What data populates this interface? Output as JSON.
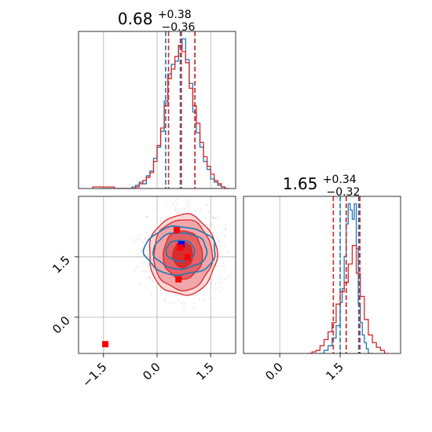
{
  "chart_data": [
    {
      "type": "histogram",
      "panel": "top-left",
      "title": {
        "value": "0.68",
        "plus": "+0.38",
        "minus": "−0.36"
      },
      "x_range": [
        -2.2,
        2.2
      ],
      "gridlines_x": [
        -1.5,
        0.0,
        1.5
      ],
      "series": [
        {
          "color": "#1f77b4",
          "bins": [
            [
              -1.6,
              0.0
            ],
            [
              -0.7,
              0.01
            ],
            [
              -0.6,
              0.02
            ],
            [
              -0.5,
              0.04
            ],
            [
              -0.4,
              0.03
            ],
            [
              -0.3,
              0.08
            ],
            [
              -0.2,
              0.11
            ],
            [
              -0.1,
              0.19
            ],
            [
              0.0,
              0.26
            ],
            [
              0.1,
              0.36
            ],
            [
              0.2,
              0.55
            ],
            [
              0.3,
              0.72
            ],
            [
              0.4,
              0.78
            ],
            [
              0.5,
              0.8
            ],
            [
              0.6,
              0.89
            ],
            [
              0.7,
              0.94
            ],
            [
              0.8,
              0.81
            ],
            [
              0.9,
              0.66
            ],
            [
              1.0,
              0.48
            ],
            [
              1.1,
              0.35
            ],
            [
              1.2,
              0.26
            ],
            [
              1.3,
              0.17
            ],
            [
              1.4,
              0.12
            ],
            [
              1.5,
              0.06
            ],
            [
              1.6,
              0.04
            ],
            [
              1.7,
              0.02
            ],
            [
              1.8,
              0.01
            ],
            [
              1.9,
              0.0
            ]
          ],
          "median": 0.65,
          "q_low": 0.24,
          "q_high": 1.06
        },
        {
          "color": "#d62728",
          "bins": [
            [
              -1.8,
              0.01
            ],
            [
              -1.2,
              0.0
            ],
            [
              -0.6,
              0.01
            ],
            [
              -0.5,
              0.03
            ],
            [
              -0.4,
              0.05
            ],
            [
              -0.3,
              0.07
            ],
            [
              -0.2,
              0.1
            ],
            [
              -0.1,
              0.17
            ],
            [
              0.0,
              0.27
            ],
            [
              0.1,
              0.38
            ],
            [
              0.2,
              0.52
            ],
            [
              0.3,
              0.69
            ],
            [
              0.4,
              0.75
            ],
            [
              0.5,
              0.83
            ],
            [
              0.6,
              0.9
            ],
            [
              0.7,
              0.86
            ],
            [
              0.8,
              0.79
            ],
            [
              0.9,
              0.63
            ],
            [
              1.0,
              0.52
            ],
            [
              1.1,
              0.41
            ],
            [
              1.2,
              0.29
            ],
            [
              1.3,
              0.2
            ],
            [
              1.4,
              0.14
            ],
            [
              1.5,
              0.09
            ],
            [
              1.6,
              0.05
            ],
            [
              1.7,
              0.03
            ],
            [
              1.8,
              0.01
            ],
            [
              1.9,
              0.0
            ]
          ],
          "median": 0.68,
          "q_low": 0.32,
          "q_high": 1.06
        }
      ]
    },
    {
      "type": "contour",
      "panel": "bottom-left",
      "x_range": [
        -2.2,
        2.2
      ],
      "y_range": [
        -0.9,
        3.0
      ],
      "x_ticks": [
        "−1.5",
        "0.0",
        "1.5"
      ],
      "x_tick_values": [
        -1.5,
        0.0,
        1.5
      ],
      "y_ticks": [
        "0.0",
        "1.5"
      ],
      "y_tick_values": [
        0.0,
        1.5
      ],
      "series": [
        {
          "color": "#d62728",
          "filled": true,
          "center": [
            0.72,
            1.55
          ],
          "levels": [
            [
              0.28,
              0.32
            ],
            [
              0.55,
              0.6
            ],
            [
              0.82,
              0.88
            ],
            [
              0.95,
              1.0
            ]
          ]
        },
        {
          "color": "#1f77b4",
          "filled": false,
          "center": [
            0.65,
            1.65
          ],
          "levels": [
            [
              0.4,
              0.26
            ],
            [
              0.75,
              0.45
            ],
            [
              1.0,
              0.6
            ]
          ]
        }
      ],
      "markers": [
        {
          "color": "#0000ff",
          "x": 0.68,
          "y": 1.81
        },
        {
          "color": "#ff0000",
          "x": 0.55,
          "y": 2.16
        },
        {
          "color": "#ff0000",
          "x": 0.65,
          "y": 1.73
        },
        {
          "color": "#ff0000",
          "x": 0.85,
          "y": 1.49
        },
        {
          "color": "#ff0000",
          "x": 0.6,
          "y": 0.94
        },
        {
          "color": "#ff0000",
          "x": -1.45,
          "y": -0.67
        }
      ]
    },
    {
      "type": "histogram",
      "panel": "bottom-right",
      "title": {
        "value": "1.65",
        "plus": "+0.34",
        "minus": "−0.32"
      },
      "x_range": [
        -0.9,
        3.0
      ],
      "x_ticks": [
        "0.0",
        "1.5"
      ],
      "x_tick_values": [
        0.0,
        1.5
      ],
      "gridlines_x": [
        0.0,
        1.5
      ],
      "series": [
        {
          "color": "#1f77b4",
          "bins": [
            [
              1.0,
              0.0
            ],
            [
              1.1,
              0.02
            ],
            [
              1.2,
              0.05
            ],
            [
              1.3,
              0.1
            ],
            [
              1.4,
              0.18
            ],
            [
              1.5,
              0.33
            ],
            [
              1.55,
              0.42
            ],
            [
              1.6,
              0.63
            ],
            [
              1.65,
              0.84
            ],
            [
              1.7,
              0.97
            ],
            [
              1.75,
              0.93
            ],
            [
              1.8,
              0.87
            ],
            [
              1.85,
              0.97
            ],
            [
              1.9,
              0.68
            ],
            [
              1.95,
              0.32
            ],
            [
              2.0,
              0.2
            ],
            [
              2.05,
              0.12
            ],
            [
              2.1,
              0.07
            ],
            [
              2.15,
              0.03
            ],
            [
              2.2,
              0.0
            ]
          ],
          "median": 1.65,
          "q_low": 1.5,
          "q_high": 1.96
        },
        {
          "color": "#d62728",
          "bins": [
            [
              0.7,
              0.0
            ],
            [
              0.8,
              0.01
            ],
            [
              0.9,
              0.02
            ],
            [
              1.0,
              0.05
            ],
            [
              1.1,
              0.09
            ],
            [
              1.2,
              0.14
            ],
            [
              1.3,
              0.2
            ],
            [
              1.4,
              0.32
            ],
            [
              1.5,
              0.4
            ],
            [
              1.6,
              0.46
            ],
            [
              1.7,
              0.58
            ],
            [
              1.8,
              0.7
            ],
            [
              1.9,
              0.52
            ],
            [
              2.0,
              0.37
            ],
            [
              2.1,
              0.22
            ],
            [
              2.2,
              0.12
            ],
            [
              2.3,
              0.07
            ],
            [
              2.4,
              0.04
            ],
            [
              2.5,
              0.02
            ],
            [
              2.6,
              0.0
            ]
          ],
          "median": 1.65,
          "q_low": 1.33,
          "q_high": 1.99
        }
      ]
    }
  ]
}
